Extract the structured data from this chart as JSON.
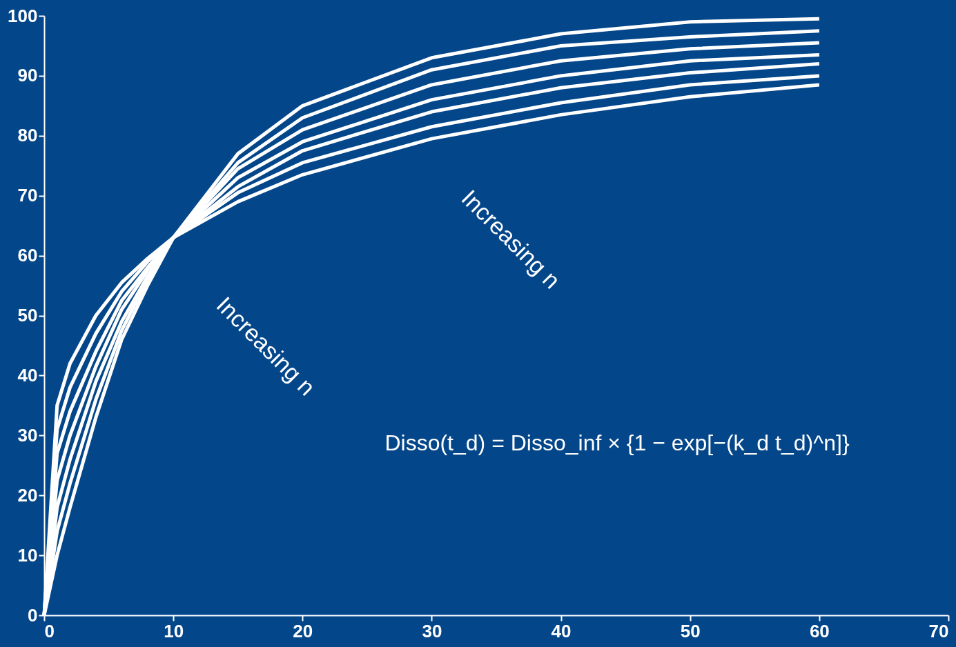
{
  "chart_data": {
    "type": "line",
    "x": [
      0,
      1,
      2,
      4,
      6,
      8,
      10,
      15,
      20,
      30,
      40,
      50,
      60
    ],
    "series": [
      {
        "color": "#ffffff",
        "values": [
          0,
          10,
          18,
          33,
          46,
          55,
          63,
          77,
          85,
          93,
          97,
          99,
          99.5
        ]
      },
      {
        "color": "#ffffff",
        "values": [
          0,
          14,
          22,
          36,
          47.5,
          56,
          63,
          75.5,
          83,
          91,
          95,
          96.5,
          97.5
        ]
      },
      {
        "color": "#ffffff",
        "values": [
          0,
          18,
          26,
          39,
          49,
          56.5,
          63,
          74.5,
          81,
          88.5,
          92.5,
          94.5,
          95.5
        ]
      },
      {
        "color": "#ffffff",
        "values": [
          0,
          22.5,
          30,
          41.5,
          51,
          57.5,
          63,
          73,
          79,
          86,
          90,
          92.5,
          93.5
        ]
      },
      {
        "color": "#ffffff",
        "values": [
          0,
          27,
          34,
          44,
          52.5,
          58,
          63,
          71.5,
          77.5,
          84,
          88,
          90.5,
          92
        ]
      },
      {
        "color": "#ffffff",
        "values": [
          0,
          31,
          38,
          47,
          54,
          59,
          63,
          70.5,
          75.5,
          81.5,
          85.5,
          88.5,
          90
        ]
      },
      {
        "color": "#ffffff",
        "values": [
          0,
          35,
          42,
          50,
          55.5,
          59.5,
          63,
          69,
          73.5,
          79.5,
          83.5,
          86.5,
          88.5
        ]
      }
    ],
    "xlim": [
      0,
      70
    ],
    "xticks": [
      0,
      10,
      20,
      30,
      40,
      50,
      60,
      70
    ],
    "ylim": [
      0,
      100
    ],
    "yticks": [
      0,
      10,
      20,
      30,
      40,
      50,
      60,
      70,
      80,
      90,
      100
    ],
    "grid": false,
    "legend": false,
    "marker": "none",
    "line_style": "solid",
    "annotations": [
      "Increasing n",
      "Increasing n",
      "Disso(t_d) = Disso_inf × {1 − exp[−(k_d t_d)^n]}"
    ]
  }
}
